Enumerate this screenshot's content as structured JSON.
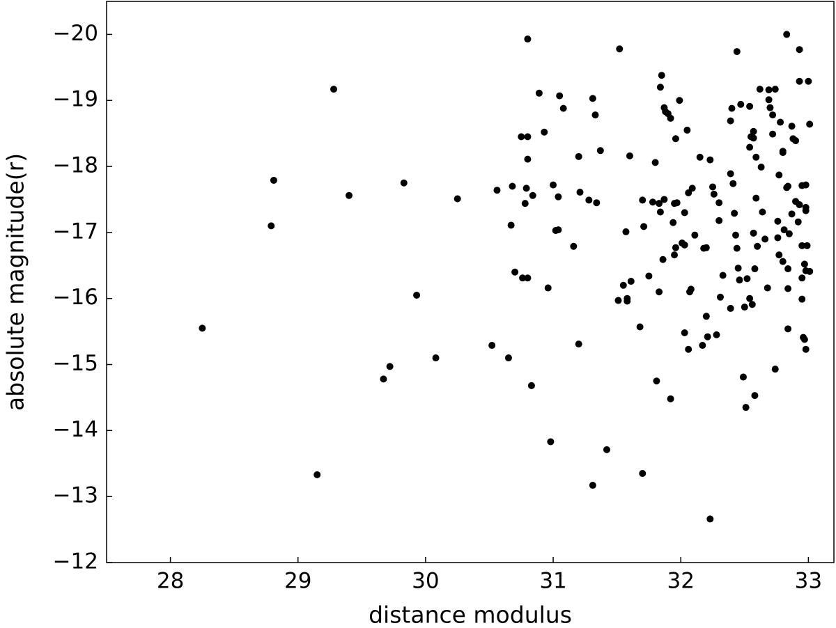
{
  "chart_data": {
    "type": "scatter",
    "x_label": "distance modulus",
    "y_label": "absolute magnitude(r)",
    "color": "#000000",
    "grid": false,
    "tick_direction": "in",
    "xlim": [
      27.5,
      33.2
    ],
    "ylim": [
      -12,
      -20.5
    ],
    "xticks": [
      28,
      29,
      30,
      31,
      32,
      33
    ],
    "yticks": [
      {
        "value": -20,
        "label": "−20"
      },
      {
        "value": -19,
        "label": "−19"
      },
      {
        "value": -18,
        "label": "−18"
      },
      {
        "value": -17,
        "label": "−17"
      },
      {
        "value": -16,
        "label": "−16"
      },
      {
        "value": -15,
        "label": "−15"
      },
      {
        "value": -14,
        "label": "−14"
      },
      {
        "value": -13,
        "label": "−13"
      },
      {
        "value": -12,
        "label": "−12"
      }
    ],
    "x": [
      28.25,
      28.79,
      28.81,
      29.15,
      29.28,
      29.4,
      29.67,
      29.72,
      29.83,
      29.93,
      30.08,
      30.25,
      30.52,
      30.56,
      30.65,
      30.68,
      30.67,
      30.7,
      30.75,
      30.76,
      30.78,
      30.79,
      30.8,
      30.8,
      30.8,
      30.8,
      30.83,
      30.84,
      30.89,
      30.93,
      30.96,
      30.98,
      31.0,
      31.02,
      31.04,
      31.04,
      31.05,
      31.08,
      31.16,
      31.2,
      31.2,
      31.21,
      31.28,
      31.31,
      31.31,
      31.33,
      31.34,
      31.37,
      31.42,
      31.51,
      31.52,
      31.55,
      31.57,
      31.58,
      31.58,
      31.6,
      31.61,
      31.68,
      31.7,
      31.7,
      31.71,
      31.75,
      31.78,
      31.8,
      31.81,
      31.83,
      31.83,
      31.84,
      31.84,
      31.85,
      31.86,
      31.87,
      31.87,
      31.88,
      31.9,
      31.92,
      31.92,
      31.94,
      31.95,
      31.95,
      31.96,
      31.96,
      31.97,
      31.99,
      32.01,
      32.03,
      32.03,
      32.03,
      32.05,
      32.06,
      32.06,
      32.07,
      32.08,
      32.09,
      32.11,
      32.15,
      32.17,
      32.18,
      32.2,
      32.2,
      32.21,
      32.23,
      32.23,
      32.25,
      32.26,
      32.28,
      32.3,
      32.3,
      32.31,
      32.33,
      32.39,
      32.39,
      32.39,
      32.4,
      32.41,
      32.42,
      32.43,
      32.44,
      32.44,
      32.45,
      32.46,
      32.47,
      32.49,
      32.5,
      32.51,
      32.52,
      32.54,
      32.54,
      32.54,
      32.55,
      32.56,
      32.57,
      32.57,
      32.57,
      32.58,
      32.58,
      32.59,
      32.59,
      32.6,
      32.62,
      32.63,
      32.64,
      32.66,
      32.68,
      32.69,
      32.69,
      32.7,
      32.72,
      32.72,
      32.74,
      32.74,
      32.76,
      32.76,
      32.77,
      32.77,
      32.78,
      32.8,
      32.8,
      32.8,
      32.81,
      32.83,
      32.83,
      32.84,
      32.84,
      32.84,
      32.84,
      32.85,
      32.87,
      32.87,
      32.88,
      32.9,
      32.9,
      32.92,
      32.93,
      32.93,
      32.93,
      32.95,
      32.95,
      32.95,
      32.95,
      32.96,
      32.97,
      32.97,
      32.98,
      32.98,
      32.98,
      32.98,
      32.98,
      32.99,
      33.0,
      33.01,
      33.01
    ],
    "values": [
      -15.55,
      -17.1,
      -17.79,
      -13.33,
      -19.17,
      -17.56,
      -14.78,
      -14.97,
      -17.75,
      -16.05,
      -15.1,
      -17.51,
      -15.29,
      -17.64,
      -15.1,
      -17.7,
      -17.11,
      -16.4,
      -18.45,
      -16.31,
      -17.44,
      -17.67,
      -19.93,
      -18.11,
      -18.45,
      -16.31,
      -14.68,
      -17.56,
      -19.11,
      -18.52,
      -16.16,
      -13.83,
      -17.72,
      -17.03,
      -17.54,
      -17.04,
      -19.07,
      -18.88,
      -16.79,
      -15.31,
      -18.15,
      -17.61,
      -17.49,
      -19.03,
      -13.17,
      -18.78,
      -17.45,
      -18.24,
      -13.71,
      -15.97,
      -19.78,
      -16.2,
      -17.01,
      -16.0,
      -15.96,
      -18.16,
      -16.26,
      -15.57,
      -17.49,
      -13.35,
      -17.09,
      -16.34,
      -17.46,
      -18.06,
      -14.75,
      -16.1,
      -17.44,
      -19.2,
      -17.31,
      -19.38,
      -16.59,
      -18.89,
      -17.5,
      -18.83,
      -18.8,
      -18.73,
      -14.48,
      -17.15,
      -16.66,
      -17.44,
      -18.42,
      -16.77,
      -17.45,
      -19.0,
      -16.84,
      -16.81,
      -17.3,
      -15.48,
      -18.55,
      -17.6,
      -15.23,
      -16.1,
      -16.14,
      -17.67,
      -16.96,
      -18.14,
      -15.29,
      -16.76,
      -15.73,
      -16.77,
      -15.42,
      -18.1,
      -12.66,
      -17.69,
      -17.58,
      -15.45,
      -17.18,
      -17.45,
      -16.02,
      -16.35,
      -18.69,
      -17.89,
      -15.85,
      -18.88,
      -17.74,
      -17.29,
      -16.96,
      -19.74,
      -16.76,
      -16.46,
      -16.28,
      -18.94,
      -14.81,
      -15.87,
      -14.35,
      -16.3,
      -16.0,
      -18.91,
      -18.29,
      -18.45,
      -15.91,
      -18.43,
      -18.53,
      -16.99,
      -16.45,
      -14.53,
      -18.14,
      -17.52,
      -16.79,
      -19.17,
      -17.99,
      -17.31,
      -16.9,
      -16.16,
      -19.16,
      -19.01,
      -18.89,
      -18.78,
      -18.49,
      -19.17,
      -14.93,
      -17.17,
      -16.92,
      -16.66,
      -17.87,
      -18.67,
      -18.21,
      -16.56,
      -18.23,
      -17.04,
      -17.68,
      -20.0,
      -15.54,
      -17.7,
      -16.45,
      -16.15,
      -16.98,
      -18.61,
      -17.28,
      -18.42,
      -18.39,
      -17.47,
      -17.16,
      -19.77,
      -19.29,
      -17.42,
      -17.71,
      -16.8,
      -16.31,
      -15.99,
      -15.41,
      -16.52,
      -15.38,
      -17.38,
      -17.33,
      -17.72,
      -16.42,
      -15.23,
      -16.8,
      -19.29,
      -16.41,
      -18.64
    ]
  }
}
